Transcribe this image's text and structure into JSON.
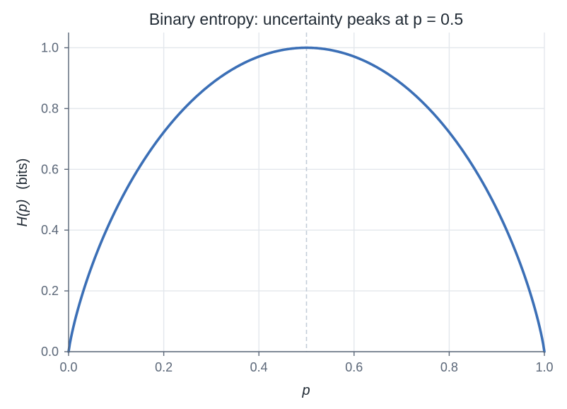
{
  "chart_data": {
    "type": "line",
    "title": "Binary entropy: uncertainty peaks at p = 0.5",
    "xlabel_italic": "p",
    "ylabel_italic": "H(p)",
    "ylabel_suffix": "(bits)",
    "xlim": [
      0.0,
      1.0
    ],
    "ylim": [
      0.0,
      1.05
    ],
    "xticks": [
      0.0,
      0.2,
      0.4,
      0.6,
      0.8,
      1.0
    ],
    "yticks": [
      0.0,
      0.2,
      0.4,
      0.6,
      0.8,
      1.0
    ],
    "xtick_labels": [
      "0.0",
      "0.2",
      "0.4",
      "0.6",
      "0.8",
      "1.0"
    ],
    "ytick_labels": [
      "0.0",
      "0.2",
      "0.4",
      "0.6",
      "0.8",
      "1.0"
    ],
    "grid": true,
    "reference_line_x": 0.5,
    "series": [
      {
        "color": "#3b6fb6",
        "x": [
          0.0,
          0.01,
          0.05,
          0.1,
          0.15,
          0.2,
          0.25,
          0.3,
          0.35,
          0.4,
          0.45,
          0.5,
          0.55,
          0.6,
          0.65,
          0.7,
          0.75,
          0.8,
          0.85,
          0.9,
          0.95,
          0.99,
          1.0
        ],
        "y": [
          0.0,
          0.081,
          0.286,
          0.469,
          0.61,
          0.722,
          0.811,
          0.881,
          0.934,
          0.971,
          0.993,
          1.0,
          0.993,
          0.971,
          0.934,
          0.881,
          0.811,
          0.722,
          0.61,
          0.469,
          0.286,
          0.081,
          0.0
        ]
      }
    ]
  },
  "colors": {
    "line": "#3b6fb6",
    "grid": "#e3e7ec",
    "axis": "#5b6778",
    "reference": "#c3ccd8",
    "text": "#1f2933"
  }
}
